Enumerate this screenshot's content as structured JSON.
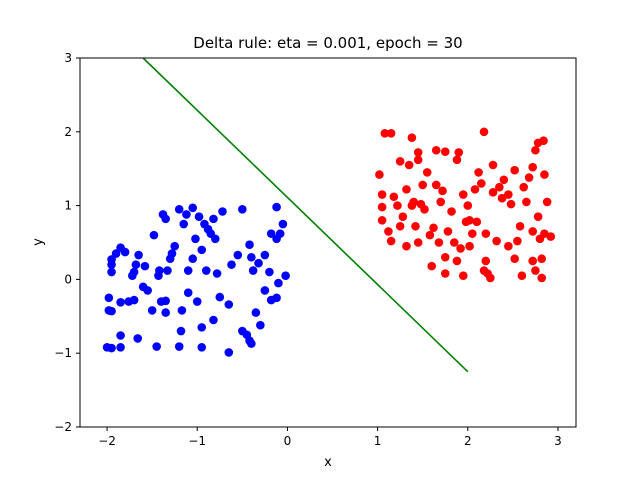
{
  "chart_data": {
    "type": "scatter",
    "title": "Delta rule: eta = 0.001, epoch = 30",
    "xlabel": "x",
    "ylabel": "y",
    "xlim": [
      -2.3,
      3.2
    ],
    "ylim": [
      -2,
      3
    ],
    "xticks": [
      -2,
      -1,
      0,
      1,
      2,
      3
    ],
    "yticks": [
      -2,
      -1,
      0,
      1,
      2,
      3
    ],
    "grid": false,
    "legend": "none",
    "series": [
      {
        "kind": "points",
        "color": "#0000ff",
        "points": [
          [
            -2.0,
            -0.92
          ],
          [
            -1.95,
            -0.93
          ],
          [
            -1.85,
            -0.92
          ],
          [
            -1.85,
            -0.76
          ],
          [
            -1.66,
            -0.8
          ],
          [
            -1.45,
            -0.91
          ],
          [
            -1.2,
            -0.91
          ],
          [
            -0.95,
            -0.92
          ],
          [
            -0.65,
            -0.99
          ],
          [
            -0.42,
            -0.83
          ],
          [
            -0.4,
            -0.87
          ],
          [
            -1.98,
            -0.42
          ],
          [
            -1.95,
            -0.43
          ],
          [
            -1.85,
            -0.31
          ],
          [
            -1.7,
            -0.28
          ],
          [
            -1.5,
            -0.42
          ],
          [
            -1.4,
            -0.3
          ],
          [
            -1.35,
            -0.29
          ],
          [
            -1.35,
            -0.45
          ],
          [
            -1.17,
            -0.42
          ],
          [
            -1.18,
            -0.7
          ],
          [
            -1.0,
            -0.3
          ],
          [
            -0.95,
            -0.65
          ],
          [
            -0.82,
            -0.55
          ],
          [
            -0.75,
            -0.24
          ],
          [
            -0.65,
            -0.34
          ],
          [
            -0.5,
            -0.7
          ],
          [
            -0.45,
            -0.75
          ],
          [
            -0.35,
            -0.45
          ],
          [
            -0.3,
            -0.62
          ],
          [
            -0.18,
            -0.28
          ],
          [
            -0.12,
            -0.25
          ],
          [
            -0.1,
            -0.05
          ],
          [
            -0.25,
            -0.15
          ],
          [
            -1.98,
            -0.25
          ],
          [
            -1.95,
            0.1
          ],
          [
            -1.95,
            0.2
          ],
          [
            -1.95,
            0.27
          ],
          [
            -1.9,
            0.35
          ],
          [
            -1.85,
            0.43
          ],
          [
            -1.8,
            0.37
          ],
          [
            -1.76,
            -0.3
          ],
          [
            -1.72,
            0.05
          ],
          [
            -1.7,
            0.1
          ],
          [
            -1.68,
            0.2
          ],
          [
            -1.65,
            0.33
          ],
          [
            -1.6,
            -0.1
          ],
          [
            -1.55,
            -0.15
          ],
          [
            -1.48,
            0.6
          ],
          [
            -1.43,
            0.05
          ],
          [
            -1.38,
            0.88
          ],
          [
            -1.35,
            0.82
          ],
          [
            -1.33,
            0.12
          ],
          [
            -1.28,
            0.35
          ],
          [
            -1.25,
            0.45
          ],
          [
            -1.2,
            0.95
          ],
          [
            -1.15,
            0.75
          ],
          [
            -1.1,
            0.12
          ],
          [
            -1.1,
            -0.18
          ],
          [
            -1.05,
            0.97
          ],
          [
            -1.05,
            0.28
          ],
          [
            -1.02,
            0.55
          ],
          [
            -0.98,
            0.85
          ],
          [
            -0.95,
            0.4
          ],
          [
            -0.92,
            0.75
          ],
          [
            -0.9,
            0.12
          ],
          [
            -0.85,
            0.62
          ],
          [
            -0.8,
            0.55
          ],
          [
            -0.78,
            0.08
          ],
          [
            -0.72,
            0.92
          ],
          [
            -0.62,
            0.2
          ],
          [
            -0.55,
            0.33
          ],
          [
            -0.5,
            0.95
          ],
          [
            -0.42,
            0.47
          ],
          [
            -0.4,
            0.3
          ],
          [
            -0.38,
            0.12
          ],
          [
            -0.32,
            0.22
          ],
          [
            -0.25,
            0.33
          ],
          [
            -0.2,
            0.1
          ],
          [
            -0.18,
            0.62
          ],
          [
            -0.12,
            0.55
          ],
          [
            -0.12,
            0.98
          ],
          [
            -0.08,
            0.62
          ],
          [
            -0.05,
            0.75
          ],
          [
            -0.02,
            0.05
          ],
          [
            -1.58,
            0.18
          ],
          [
            -1.42,
            0.12
          ],
          [
            -1.3,
            0.28
          ],
          [
            -1.12,
            0.88
          ],
          [
            -0.88,
            0.68
          ],
          [
            -0.82,
            0.82
          ]
        ]
      },
      {
        "kind": "points",
        "color": "#ff0000",
        "points": [
          [
            1.08,
            1.98
          ],
          [
            1.15,
            1.98
          ],
          [
            1.38,
            1.92
          ],
          [
            1.25,
            1.6
          ],
          [
            1.35,
            1.55
          ],
          [
            1.45,
            1.72
          ],
          [
            1.45,
            1.62
          ],
          [
            1.65,
            1.75
          ],
          [
            1.75,
            1.73
          ],
          [
            1.88,
            1.62
          ],
          [
            2.18,
            2.0
          ],
          [
            2.28,
            1.55
          ],
          [
            2.52,
            1.48
          ],
          [
            2.75,
            1.75
          ],
          [
            2.78,
            1.85
          ],
          [
            2.84,
            1.88
          ],
          [
            2.72,
            1.52
          ],
          [
            2.85,
            1.42
          ],
          [
            1.02,
            1.42
          ],
          [
            1.05,
            1.15
          ],
          [
            1.05,
            0.98
          ],
          [
            1.05,
            0.8
          ],
          [
            1.12,
            0.65
          ],
          [
            1.15,
            0.52
          ],
          [
            1.22,
            1.0
          ],
          [
            1.28,
            0.85
          ],
          [
            1.32,
            0.45
          ],
          [
            1.32,
            1.22
          ],
          [
            1.38,
            1.0
          ],
          [
            1.4,
            1.05
          ],
          [
            1.45,
            0.5
          ],
          [
            1.48,
            1.02
          ],
          [
            1.5,
            1.28
          ],
          [
            1.52,
            0.95
          ],
          [
            1.55,
            1.45
          ],
          [
            1.58,
            0.6
          ],
          [
            1.6,
            0.18
          ],
          [
            1.62,
            0.7
          ],
          [
            1.65,
            1.28
          ],
          [
            1.68,
            0.5
          ],
          [
            1.7,
            1.05
          ],
          [
            1.72,
            1.2
          ],
          [
            1.75,
            0.3
          ],
          [
            1.75,
            0.08
          ],
          [
            1.78,
            0.65
          ],
          [
            1.82,
            0.92
          ],
          [
            1.85,
            0.5
          ],
          [
            1.9,
            1.72
          ],
          [
            1.92,
            0.42
          ],
          [
            1.95,
            0.05
          ],
          [
            1.95,
            1.15
          ],
          [
            1.98,
            0.78
          ],
          [
            2.0,
            1.0
          ],
          [
            2.02,
            0.8
          ],
          [
            2.05,
            0.62
          ],
          [
            2.08,
            1.22
          ],
          [
            2.1,
            0.78
          ],
          [
            2.12,
            1.45
          ],
          [
            2.15,
            1.3
          ],
          [
            2.18,
            0.12
          ],
          [
            2.2,
            0.62
          ],
          [
            2.2,
            0.25
          ],
          [
            2.22,
            0.08
          ],
          [
            2.25,
            0.02
          ],
          [
            2.28,
            1.18
          ],
          [
            2.32,
            0.52
          ],
          [
            2.35,
            1.25
          ],
          [
            2.38,
            1.1
          ],
          [
            2.4,
            1.35
          ],
          [
            2.45,
            1.15
          ],
          [
            2.48,
            1.02
          ],
          [
            2.52,
            0.28
          ],
          [
            2.55,
            0.52
          ],
          [
            2.58,
            0.72
          ],
          [
            2.62,
            1.25
          ],
          [
            2.65,
            1.05
          ],
          [
            2.68,
            1.38
          ],
          [
            2.72,
            0.65
          ],
          [
            2.72,
            0.25
          ],
          [
            2.75,
            0.12
          ],
          [
            2.78,
            0.85
          ],
          [
            2.8,
            0.55
          ],
          [
            2.82,
            0.28
          ],
          [
            2.82,
            0.02
          ],
          [
            2.85,
            0.62
          ],
          [
            2.88,
            1.05
          ],
          [
            2.92,
            0.58
          ],
          [
            1.18,
            1.12
          ],
          [
            1.25,
            0.72
          ],
          [
            1.42,
            0.72
          ],
          [
            1.88,
            0.25
          ],
          [
            2.02,
            0.45
          ],
          [
            2.45,
            0.45
          ],
          [
            2.6,
            0.05
          ]
        ]
      },
      {
        "kind": "line",
        "color": "#008000",
        "points": [
          [
            -1.6,
            3.0
          ],
          [
            2.0,
            -1.25
          ]
        ]
      }
    ]
  }
}
